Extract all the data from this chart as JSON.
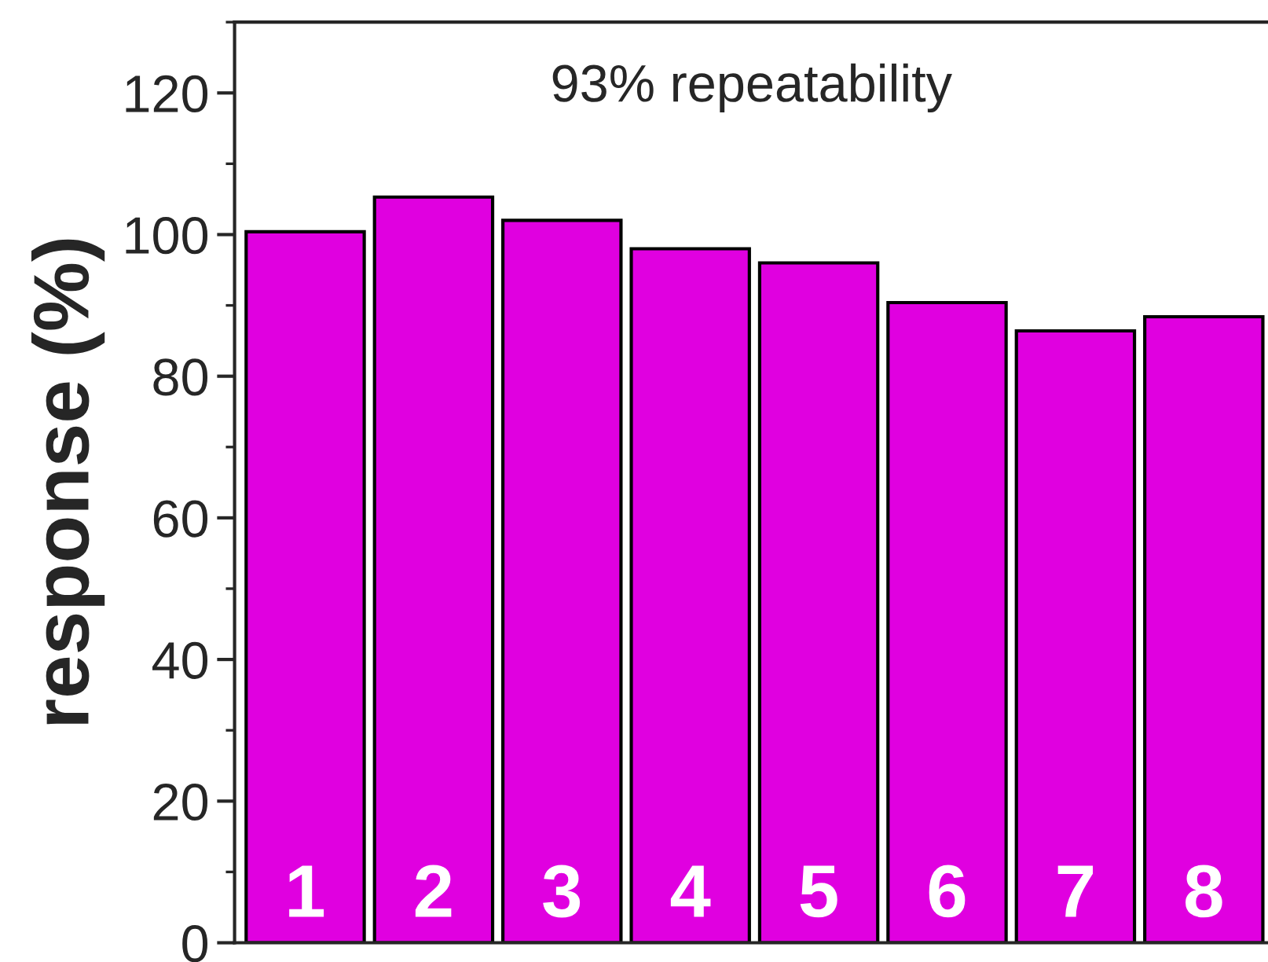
{
  "chart_data": {
    "type": "bar",
    "ylabel": "response (%)",
    "annotations": [
      "93% repeatability"
    ],
    "categories": [
      "1",
      "2",
      "3",
      "4",
      "5",
      "6",
      "7",
      "8"
    ],
    "values": [
      100.4,
      105.3,
      102,
      98,
      96,
      90.4,
      86.4,
      88.4
    ],
    "color": "#e000e0",
    "ylim": [
      0,
      130
    ],
    "yticks": [
      0,
      20,
      40,
      60,
      80,
      100,
      120
    ],
    "grid": false,
    "legend": false
  }
}
